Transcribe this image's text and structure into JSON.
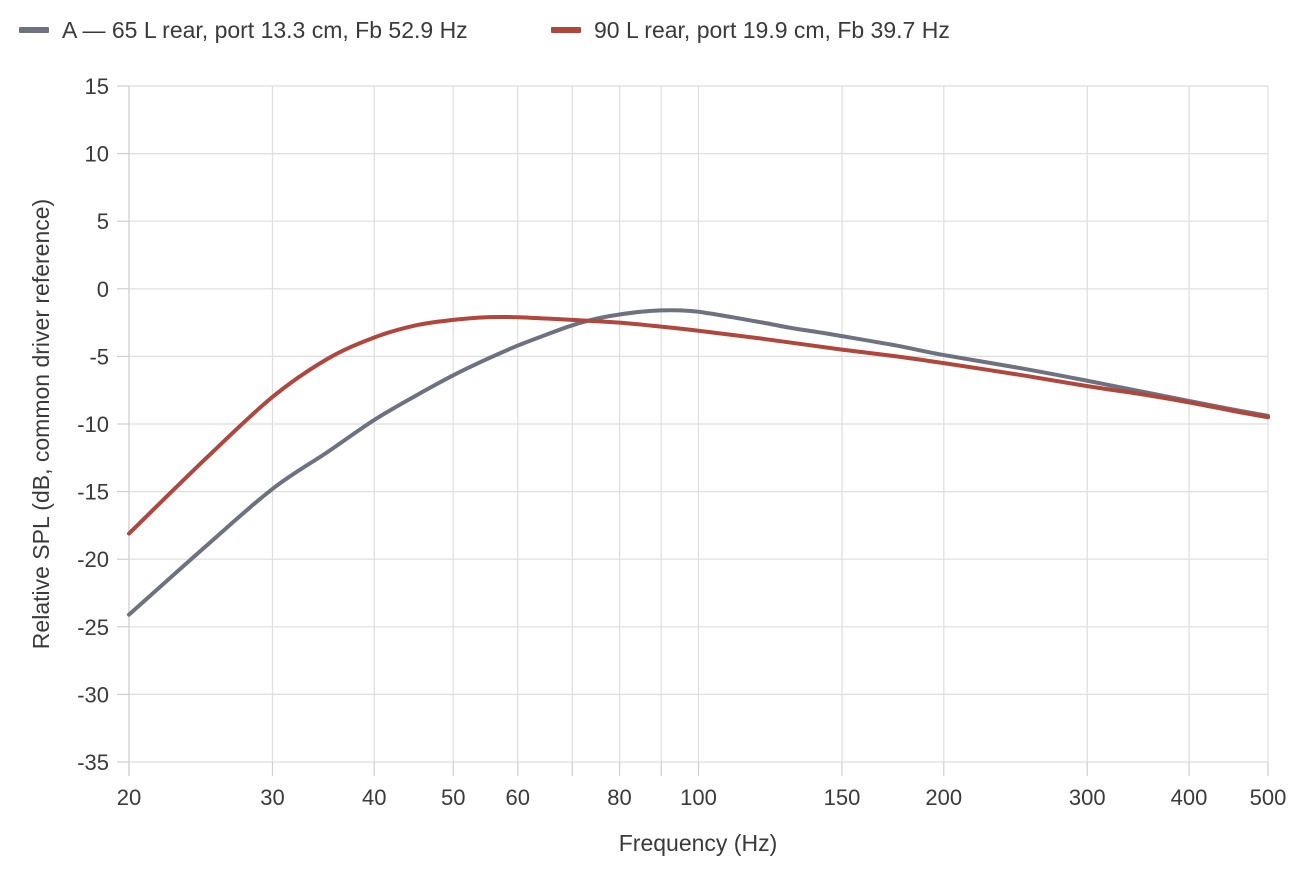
{
  "chart_data": {
    "type": "line",
    "xlabel": "Frequency (Hz)",
    "ylabel": "Relative SPL (dB, common driver reference)",
    "x_scale": "log",
    "xlim": [
      20,
      500
    ],
    "ylim": [
      -35,
      15
    ],
    "x_ticks": [
      20,
      30,
      40,
      50,
      60,
      80,
      100,
      150,
      200,
      300,
      400,
      500
    ],
    "x_gridlines": [
      20,
      30,
      40,
      50,
      60,
      70,
      80,
      90,
      100,
      150,
      200,
      300,
      400,
      500
    ],
    "y_ticks": [
      15,
      10,
      5,
      0,
      -5,
      -10,
      -15,
      -20,
      -25,
      -30,
      -35
    ],
    "grid": true,
    "legend_position": "top-left",
    "series": [
      {
        "name": "A — 65 L rear, port 13.3 cm, Fb 52.9 Hz",
        "color": "#6e7180",
        "x": [
          20,
          25,
          30,
          35,
          40,
          45,
          50,
          55,
          60,
          65,
          70,
          75,
          80,
          85,
          90,
          95,
          100,
          110,
          120,
          130,
          140,
          150,
          175,
          200,
          250,
          300,
          350,
          400,
          450,
          500
        ],
        "y": [
          -24.1,
          -18.9,
          -14.8,
          -12.1,
          -9.7,
          -7.9,
          -6.4,
          -5.2,
          -4.2,
          -3.4,
          -2.7,
          -2.2,
          -1.9,
          -1.7,
          -1.6,
          -1.6,
          -1.7,
          -2.1,
          -2.5,
          -2.9,
          -3.2,
          -3.5,
          -4.2,
          -4.9,
          -5.9,
          -6.8,
          -7.6,
          -8.3,
          -8.9,
          -9.4
        ]
      },
      {
        "name": "90 L rear, port 19.9 cm, Fb 39.7 Hz",
        "color": "#b0463c",
        "x": [
          20,
          25,
          30,
          35,
          40,
          45,
          50,
          55,
          60,
          65,
          70,
          75,
          80,
          90,
          100,
          120,
          150,
          175,
          200,
          250,
          300,
          350,
          400,
          450,
          500
        ],
        "y": [
          -18.1,
          -12.4,
          -8.0,
          -5.2,
          -3.6,
          -2.7,
          -2.3,
          -2.1,
          -2.1,
          -2.2,
          -2.3,
          -2.4,
          -2.5,
          -2.8,
          -3.1,
          -3.7,
          -4.5,
          -5.0,
          -5.5,
          -6.4,
          -7.2,
          -7.8,
          -8.4,
          -9.0,
          -9.5
        ]
      }
    ]
  }
}
